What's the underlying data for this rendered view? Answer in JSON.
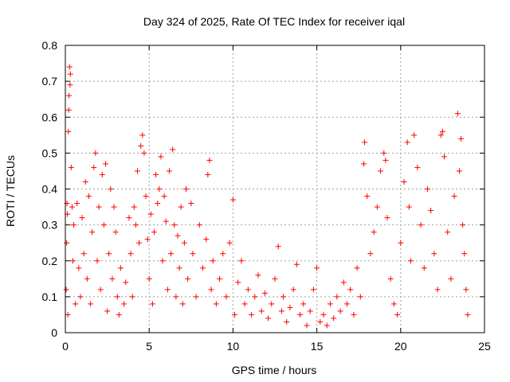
{
  "chart_data": {
    "type": "scatter",
    "title": "Day 324 of 2025, Rate Of TEC Index for receiver iqal",
    "xlabel": "GPS time / hours",
    "ylabel": "ROTI / TECUs",
    "xlim": [
      0,
      25
    ],
    "ylim": [
      0,
      0.8
    ],
    "x_ticks": [
      0,
      5,
      10,
      15,
      20,
      25
    ],
    "x_tick_labels": [
      "0",
      "5",
      "10",
      "15",
      "20",
      "25"
    ],
    "y_ticks": [
      0,
      0.1,
      0.2,
      0.3,
      0.4,
      0.5,
      0.6,
      0.7,
      0.8
    ],
    "y_tick_labels": [
      "0",
      "0.1",
      "0.2",
      "0.3",
      "0.4",
      "0.5",
      "0.6",
      "0.7",
      "0.8"
    ],
    "grid": true,
    "marker": "plus",
    "marker_color": "#ff0000",
    "series": [
      {
        "name": "ROTI",
        "points": [
          [
            0.05,
            0.12
          ],
          [
            0.08,
            0.25
          ],
          [
            0.1,
            0.36
          ],
          [
            0.12,
            0.33
          ],
          [
            0.15,
            0.05
          ],
          [
            0.18,
            0.56
          ],
          [
            0.2,
            0.62
          ],
          [
            0.22,
            0.66
          ],
          [
            0.25,
            0.74
          ],
          [
            0.28,
            0.69
          ],
          [
            0.3,
            0.72
          ],
          [
            0.35,
            0.46
          ],
          [
            0.4,
            0.35
          ],
          [
            0.45,
            0.2
          ],
          [
            0.5,
            0.3
          ],
          [
            0.6,
            0.08
          ],
          [
            0.7,
            0.36
          ],
          [
            0.8,
            0.18
          ],
          [
            0.9,
            0.1
          ],
          [
            1.0,
            0.32
          ],
          [
            1.1,
            0.22
          ],
          [
            1.2,
            0.42
          ],
          [
            1.3,
            0.15
          ],
          [
            1.4,
            0.38
          ],
          [
            1.5,
            0.08
          ],
          [
            1.6,
            0.28
          ],
          [
            1.7,
            0.46
          ],
          [
            1.8,
            0.5
          ],
          [
            1.9,
            0.2
          ],
          [
            2.0,
            0.35
          ],
          [
            2.1,
            0.12
          ],
          [
            2.2,
            0.44
          ],
          [
            2.3,
            0.3
          ],
          [
            2.4,
            0.47
          ],
          [
            2.5,
            0.06
          ],
          [
            2.6,
            0.22
          ],
          [
            2.7,
            0.4
          ],
          [
            2.8,
            0.15
          ],
          [
            2.9,
            0.35
          ],
          [
            3.0,
            0.28
          ],
          [
            3.1,
            0.1
          ],
          [
            3.2,
            0.05
          ],
          [
            3.3,
            0.18
          ],
          [
            3.5,
            0.08
          ],
          [
            3.6,
            0.14
          ],
          [
            3.8,
            0.32
          ],
          [
            3.9,
            0.22
          ],
          [
            4.0,
            0.1
          ],
          [
            4.1,
            0.35
          ],
          [
            4.2,
            0.3
          ],
          [
            4.3,
            0.45
          ],
          [
            4.4,
            0.25
          ],
          [
            4.5,
            0.52
          ],
          [
            4.6,
            0.55
          ],
          [
            4.7,
            0.5
          ],
          [
            4.8,
            0.38
          ],
          [
            4.9,
            0.26
          ],
          [
            5.0,
            0.15
          ],
          [
            5.1,
            0.33
          ],
          [
            5.2,
            0.08
          ],
          [
            5.3,
            0.28
          ],
          [
            5.4,
            0.44
          ],
          [
            5.5,
            0.36
          ],
          [
            5.6,
            0.4
          ],
          [
            5.7,
            0.49
          ],
          [
            5.8,
            0.2
          ],
          [
            5.9,
            0.38
          ],
          [
            6.0,
            0.31
          ],
          [
            6.1,
            0.12
          ],
          [
            6.2,
            0.45
          ],
          [
            6.3,
            0.22
          ],
          [
            6.4,
            0.51
          ],
          [
            6.5,
            0.3
          ],
          [
            6.6,
            0.1
          ],
          [
            6.7,
            0.27
          ],
          [
            6.8,
            0.18
          ],
          [
            6.9,
            0.35
          ],
          [
            7.0,
            0.08
          ],
          [
            7.1,
            0.25
          ],
          [
            7.2,
            0.4
          ],
          [
            7.3,
            0.15
          ],
          [
            7.5,
            0.36
          ],
          [
            7.6,
            0.22
          ],
          [
            7.8,
            0.1
          ],
          [
            8.0,
            0.3
          ],
          [
            8.2,
            0.18
          ],
          [
            8.4,
            0.26
          ],
          [
            8.5,
            0.44
          ],
          [
            8.6,
            0.48
          ],
          [
            8.7,
            0.12
          ],
          [
            8.8,
            0.2
          ],
          [
            9.0,
            0.08
          ],
          [
            9.2,
            0.15
          ],
          [
            9.4,
            0.22
          ],
          [
            9.6,
            0.1
          ],
          [
            9.8,
            0.25
          ],
          [
            10.0,
            0.37
          ],
          [
            10.1,
            0.05
          ],
          [
            10.3,
            0.14
          ],
          [
            10.5,
            0.2
          ],
          [
            10.7,
            0.08
          ],
          [
            10.9,
            0.12
          ],
          [
            11.1,
            0.05
          ],
          [
            11.3,
            0.1
          ],
          [
            11.5,
            0.16
          ],
          [
            11.7,
            0.06
          ],
          [
            11.9,
            0.11
          ],
          [
            12.1,
            0.04
          ],
          [
            12.3,
            0.08
          ],
          [
            12.5,
            0.15
          ],
          [
            12.7,
            0.24
          ],
          [
            12.9,
            0.06
          ],
          [
            13.0,
            0.1
          ],
          [
            13.2,
            0.03
          ],
          [
            13.4,
            0.07
          ],
          [
            13.6,
            0.12
          ],
          [
            13.8,
            0.19
          ],
          [
            14.0,
            0.05
          ],
          [
            14.2,
            0.08
          ],
          [
            14.4,
            0.02
          ],
          [
            14.6,
            0.06
          ],
          [
            14.8,
            0.12
          ],
          [
            15.0,
            0.18
          ],
          [
            15.2,
            0.03
          ],
          [
            15.4,
            0.05
          ],
          [
            15.6,
            0.02
          ],
          [
            15.8,
            0.08
          ],
          [
            16.0,
            0.04
          ],
          [
            16.2,
            0.1
          ],
          [
            16.4,
            0.06
          ],
          [
            16.6,
            0.14
          ],
          [
            16.8,
            0.08
          ],
          [
            17.0,
            0.12
          ],
          [
            17.2,
            0.05
          ],
          [
            17.4,
            0.18
          ],
          [
            17.6,
            0.1
          ],
          [
            17.8,
            0.47
          ],
          [
            17.85,
            0.53
          ],
          [
            18.0,
            0.38
          ],
          [
            18.2,
            0.22
          ],
          [
            18.4,
            0.28
          ],
          [
            18.6,
            0.35
          ],
          [
            18.8,
            0.45
          ],
          [
            19.0,
            0.5
          ],
          [
            19.1,
            0.48
          ],
          [
            19.2,
            0.32
          ],
          [
            19.4,
            0.15
          ],
          [
            19.6,
            0.08
          ],
          [
            19.8,
            0.05
          ],
          [
            20.0,
            0.25
          ],
          [
            20.2,
            0.42
          ],
          [
            20.4,
            0.53
          ],
          [
            20.5,
            0.35
          ],
          [
            20.6,
            0.2
          ],
          [
            20.8,
            0.55
          ],
          [
            21.0,
            0.46
          ],
          [
            21.2,
            0.3
          ],
          [
            21.4,
            0.18
          ],
          [
            21.6,
            0.4
          ],
          [
            21.8,
            0.34
          ],
          [
            22.0,
            0.22
          ],
          [
            22.2,
            0.12
          ],
          [
            22.4,
            0.55
          ],
          [
            22.5,
            0.56
          ],
          [
            22.6,
            0.49
          ],
          [
            22.8,
            0.28
          ],
          [
            23.0,
            0.15
          ],
          [
            23.2,
            0.38
          ],
          [
            23.4,
            0.61
          ],
          [
            23.5,
            0.45
          ],
          [
            23.6,
            0.54
          ],
          [
            23.7,
            0.3
          ],
          [
            23.8,
            0.22
          ],
          [
            23.9,
            0.12
          ],
          [
            24.0,
            0.05
          ]
        ]
      }
    ]
  }
}
